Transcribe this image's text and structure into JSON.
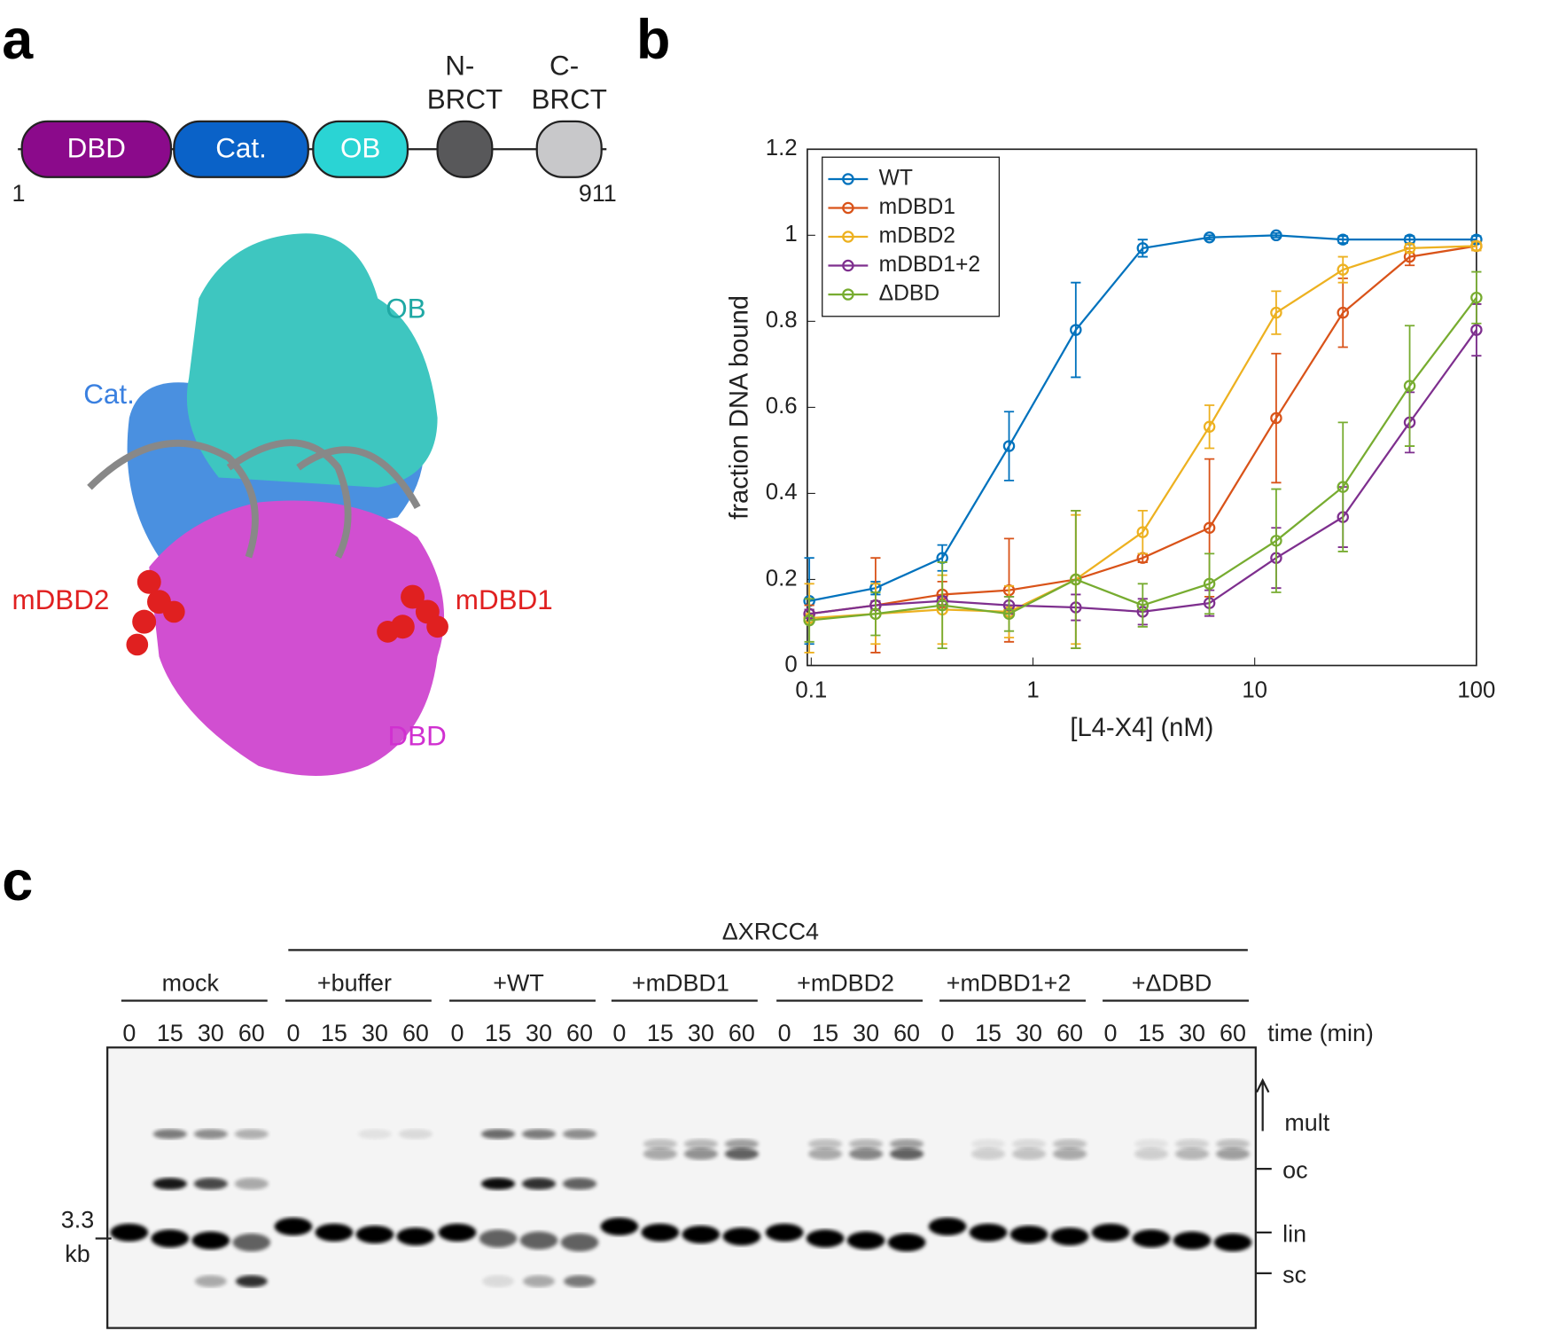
{
  "panel_labels": [
    "a",
    "b",
    "c"
  ],
  "domain_diagram": {
    "domains": [
      [
        "DBD"
      ],
      [
        "Cat."
      ],
      [
        "OB"
      ],
      [
        "N-",
        "BRCT"
      ],
      [
        "C-",
        "BRCT"
      ]
    ],
    "start": "1",
    "end": "911"
  },
  "structure_labels": [
    "OB",
    "Cat.",
    "mDBD2",
    "mDBD1",
    "DBD"
  ],
  "chart_data": {
    "type": "line",
    "xlabel": "[L4-X4] (nM)",
    "ylabel": "fraction DNA bound",
    "x": [
      0.098,
      0.195,
      0.39,
      0.78,
      1.56,
      3.125,
      6.25,
      12.5,
      25,
      50,
      100
    ],
    "xscale": "log",
    "xlim": [
      0.096,
      100
    ],
    "xticks": [
      0.1,
      1,
      10,
      100
    ],
    "ylim": [
      0,
      1.2
    ],
    "yticks": [
      0,
      0.2,
      0.4,
      0.6,
      0.8,
      1,
      1.2
    ],
    "grid": false,
    "legend": "upper-left",
    "series": [
      {
        "name": "WT",
        "color": "#0072bd",
        "values": [
          0.15,
          0.18,
          0.25,
          0.51,
          0.78,
          0.97,
          0.995,
          1.0,
          0.99,
          0.99,
          0.99
        ],
        "errors": [
          0.1,
          0.015,
          0.03,
          0.08,
          0.11,
          0.02,
          0.005,
          0.005,
          0.008,
          0.008,
          0.008
        ]
      },
      {
        "name": "mDBD1",
        "color": "#d95319",
        "values": [
          0.12,
          0.14,
          0.165,
          0.175,
          0.2,
          0.25,
          0.32,
          0.575,
          0.82,
          0.95,
          0.975
        ],
        "errors": [
          0.02,
          0.11,
          0.03,
          0.12,
          0.16,
          0.01,
          0.16,
          0.15,
          0.08,
          0.02,
          0.01
        ]
      },
      {
        "name": "mDBD2",
        "color": "#edb120",
        "values": [
          0.11,
          0.12,
          0.13,
          0.125,
          0.2,
          0.31,
          0.555,
          0.82,
          0.92,
          0.97,
          0.975
        ],
        "errors": [
          0.08,
          0.07,
          0.08,
          0.06,
          0.15,
          0.05,
          0.05,
          0.05,
          0.03,
          0.01,
          0.01
        ]
      },
      {
        "name": "mDBD1+2",
        "color": "#7e2f8e",
        "values": [
          0.12,
          0.14,
          0.15,
          0.14,
          0.135,
          0.125,
          0.145,
          0.25,
          0.345,
          0.565,
          0.78
        ],
        "errors": [
          0.01,
          0.01,
          0.01,
          0.02,
          0.03,
          0.03,
          0.03,
          0.07,
          0.07,
          0.07,
          0.06
        ]
      },
      {
        "name": "ΔDBD",
        "color": "#77ac30",
        "values": [
          0.105,
          0.12,
          0.14,
          0.12,
          0.2,
          0.14,
          0.19,
          0.29,
          0.415,
          0.65,
          0.855
        ],
        "errors": [
          0.05,
          0.05,
          0.1,
          0.04,
          0.16,
          0.05,
          0.07,
          0.12,
          0.15,
          0.14,
          0.06
        ]
      }
    ]
  },
  "gel": {
    "header": "ΔXRCC4",
    "groups": [
      "mock",
      "+buffer",
      "+WT",
      "+mDBD1",
      "+mDBD2",
      "+mDBD1+2",
      "+ΔDBD"
    ],
    "time_points": [
      "0",
      "15",
      "30",
      "60"
    ],
    "time_label": "time (min)",
    "band_labels": [
      "mult",
      "oc",
      "lin",
      "sc"
    ],
    "size_marker": [
      "3.3",
      "kb"
    ]
  }
}
